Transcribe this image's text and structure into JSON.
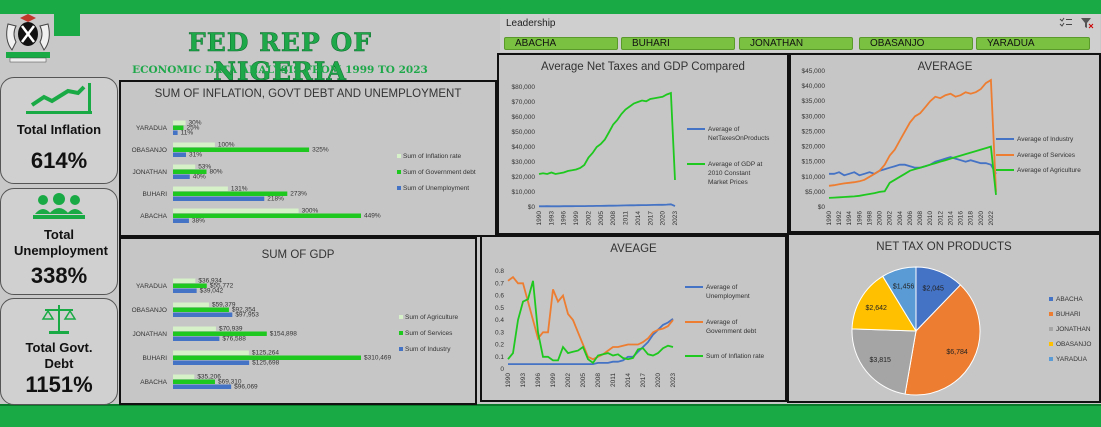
{
  "header": {
    "title": "FED REP OF NIGERIA",
    "subtitle": "ECONOMIC DATA ANALYSIS FROM 1999 TO 2023"
  },
  "kpis": [
    {
      "label": "Total Inflation",
      "value": "614%",
      "icon": "trend-up-icon"
    },
    {
      "label": "Total Unemployment",
      "value": "338%",
      "icon": "people-group-icon"
    },
    {
      "label": "Total Govt. Debt",
      "value": "1151%",
      "icon": "scales-icon"
    }
  ],
  "slicer": {
    "title": "Leadership",
    "items": [
      "ABACHA",
      "BUHARI",
      "JONATHAN",
      "OBASANJO",
      "YARADUA"
    ],
    "icons": [
      "multi-select-icon",
      "clear-filter-icon"
    ]
  },
  "colors": {
    "green": "#1aaa45",
    "light_green": "#d6f0c8",
    "bar_green": "#1ec81e",
    "blue": "#4472c4",
    "orange": "#ed7d31",
    "gray": "#a5a5a5",
    "yellow": "#ffc000",
    "light_blue": "#5b9bd5"
  },
  "chart_data": [
    {
      "id": "inflation_debt_unemp",
      "type": "bar",
      "title": "SUM OF INFLATION, GOVT DEBT AND UNEMPLOYMENT",
      "categories": [
        "YARADUA",
        "OBASANJO",
        "JONATHAN",
        "BUHARI",
        "ABACHA"
      ],
      "series": [
        {
          "name": "Sum of Inflation rate",
          "values": [
            30,
            100,
            53,
            131,
            300
          ],
          "labels": [
            "30%",
            "100%",
            "53%",
            "131%",
            "300%"
          ],
          "color": "#d6f0c8"
        },
        {
          "name": "Sum of Government debt",
          "values": [
            25,
            325,
            80,
            273,
            449
          ],
          "labels": [
            "25%",
            "325%",
            "80%",
            "273%",
            "449%"
          ],
          "color": "#1ec81e"
        },
        {
          "name": "Sum of Unemployment",
          "values": [
            11,
            31,
            40,
            218,
            38
          ],
          "labels": [
            "11%",
            "31%",
            "40%",
            "218%",
            "38%"
          ],
          "color": "#4472c4"
        }
      ]
    },
    {
      "id": "gdp_sum",
      "type": "bar",
      "title": "SUM OF GDP",
      "categories": [
        "YARADUA",
        "OBASANJO",
        "JONATHAN",
        "BUHARI",
        "ABACHA"
      ],
      "series": [
        {
          "name": "Sum of Agriculture",
          "values": [
            36934,
            59379,
            70939,
            125264,
            35206
          ],
          "labels": [
            "$36,934",
            "$59,379",
            "$70,939",
            "$125,264",
            "$35,206"
          ],
          "color": "#d6f0c8"
        },
        {
          "name": "Sum of Services",
          "values": [
            55772,
            92354,
            154898,
            310469,
            69310
          ],
          "labels": [
            "$55,772",
            "$92,354",
            "$154,898",
            "$310,469",
            "$69,310"
          ],
          "color": "#1ec81e"
        },
        {
          "name": "Sum of Industry",
          "values": [
            39042,
            97953,
            76588,
            125698,
            96069
          ],
          "labels": [
            "$39,042",
            "$97,953",
            "$76,588",
            "$125,698",
            "$96,069"
          ],
          "color": "#4472c4"
        }
      ]
    },
    {
      "id": "net_taxes_gdp",
      "type": "line",
      "title": "Average Net Taxes and GDP Compared",
      "x_ticks": [
        "1990",
        "1993",
        "1996",
        "1999",
        "2002",
        "2005",
        "2008",
        "2011",
        "2014",
        "2017",
        "2020",
        "2023"
      ],
      "x": [
        1990,
        1991,
        1992,
        1993,
        1994,
        1995,
        1996,
        1997,
        1998,
        1999,
        2000,
        2001,
        2002,
        2003,
        2004,
        2005,
        2006,
        2007,
        2008,
        2009,
        2010,
        2011,
        2012,
        2013,
        2014,
        2015,
        2016,
        2017,
        2018,
        2019,
        2020,
        2021,
        2022,
        2023
      ],
      "y_ticks": [
        "$0",
        "$10,000",
        "$20,000",
        "$30,000",
        "$40,000",
        "$50,000",
        "$60,000",
        "$70,000",
        "$80,000"
      ],
      "ylim": [
        0,
        80000
      ],
      "series": [
        {
          "name": "Average of NetTaxesOnProducts",
          "color": "#4472c4",
          "values": [
            500,
            500,
            520,
            500,
            480,
            500,
            520,
            540,
            560,
            580,
            600,
            620,
            640,
            650,
            700,
            750,
            800,
            850,
            900,
            950,
            1000,
            1050,
            1100,
            1150,
            1200,
            1250,
            1300,
            1350,
            1400,
            1450,
            1500,
            1600,
            1800,
            600
          ]
        },
        {
          "name": "Average of GDP at 2010 Constant Market Prices",
          "color": "#1ec81e",
          "values": [
            22000,
            22500,
            22000,
            23000,
            22000,
            22500,
            23000,
            24000,
            24500,
            25000,
            26000,
            28000,
            33000,
            36000,
            40000,
            42000,
            45000,
            50000,
            55000,
            58000,
            62000,
            65000,
            67000,
            69000,
            70000,
            71000,
            70500,
            72000,
            72500,
            73000,
            73500,
            75000,
            76000,
            18000
          ]
        }
      ]
    },
    {
      "id": "average_sectors",
      "type": "line",
      "title": "AVERAGE",
      "x_ticks": [
        "1990",
        "1992",
        "1994",
        "1996",
        "1998",
        "2000",
        "2002",
        "2004",
        "2006",
        "2008",
        "2010",
        "2012",
        "2014",
        "2016",
        "2018",
        "2020",
        "2022"
      ],
      "x": [
        1990,
        1991,
        1992,
        1993,
        1994,
        1995,
        1996,
        1997,
        1998,
        1999,
        2000,
        2001,
        2002,
        2003,
        2004,
        2005,
        2006,
        2007,
        2008,
        2009,
        2010,
        2011,
        2012,
        2013,
        2014,
        2015,
        2016,
        2017,
        2018,
        2019,
        2020,
        2021,
        2022,
        2023
      ],
      "y_ticks": [
        "$0",
        "$5,000",
        "$10,000",
        "$15,000",
        "$20,000",
        "$25,000",
        "$30,000",
        "$35,000",
        "$40,000",
        "$45,000"
      ],
      "ylim": [
        0,
        45000
      ],
      "series": [
        {
          "name": "Average of Industry",
          "color": "#4472c4",
          "values": [
            11000,
            11000,
            11500,
            10500,
            11000,
            11500,
            10500,
            11000,
            11500,
            11000,
            12000,
            12500,
            13000,
            13500,
            14000,
            14000,
            13500,
            13000,
            13000,
            13500,
            14000,
            15000,
            15500,
            16000,
            16500,
            16000,
            15500,
            15000,
            15500,
            15000,
            14500,
            14500,
            14000,
            11000
          ]
        },
        {
          "name": "Average of Services",
          "color": "#ed7d31",
          "values": [
            7000,
            7200,
            7500,
            7800,
            8000,
            8200,
            8500,
            9000,
            10000,
            11000,
            12000,
            14000,
            17000,
            19000,
            22000,
            25000,
            28000,
            30000,
            31000,
            33000,
            35000,
            36500,
            36000,
            37000,
            37500,
            36500,
            37000,
            38000,
            37500,
            38000,
            39000,
            41000,
            42000,
            5000
          ]
        },
        {
          "name": "Average of Agriculture",
          "color": "#1ec81e",
          "values": [
            3000,
            3100,
            3200,
            3300,
            3400,
            3500,
            3700,
            4000,
            4300,
            4600,
            5000,
            5200,
            8000,
            9000,
            10000,
            11000,
            12000,
            12500,
            13000,
            13500,
            14000,
            14500,
            15000,
            15500,
            16000,
            16500,
            17000,
            17500,
            18000,
            18500,
            19000,
            19500,
            20000,
            4000
          ]
        }
      ]
    },
    {
      "id": "average_rates",
      "type": "line",
      "title": "AVEAGE",
      "x_ticks": [
        "1990",
        "1993",
        "1996",
        "1999",
        "2002",
        "2005",
        "2008",
        "2011",
        "2014",
        "2017",
        "2020",
        "2023"
      ],
      "x": [
        1990,
        1991,
        1992,
        1993,
        1994,
        1995,
        1996,
        1997,
        1998,
        1999,
        2000,
        2001,
        2002,
        2003,
        2004,
        2005,
        2006,
        2007,
        2008,
        2009,
        2010,
        2011,
        2012,
        2013,
        2014,
        2015,
        2016,
        2017,
        2018,
        2019,
        2020,
        2021,
        2022,
        2023
      ],
      "y_ticks": [
        "0",
        "0.1",
        "0.2",
        "0.3",
        "0.4",
        "0.5",
        "0.6",
        "0.7",
        "0.8"
      ],
      "ylim": [
        0,
        0.8
      ],
      "series": [
        {
          "name": "Average of Unemployment",
          "color": "#4472c4",
          "values": [
            0.04,
            0.04,
            0.04,
            0.04,
            0.04,
            0.04,
            0.04,
            0.04,
            0.04,
            0.04,
            0.04,
            0.04,
            0.04,
            0.04,
            0.04,
            0.04,
            0.04,
            0.04,
            0.05,
            0.05,
            0.05,
            0.06,
            0.06,
            0.07,
            0.1,
            0.1,
            0.14,
            0.18,
            0.22,
            0.28,
            0.32,
            0.36,
            0.38,
            0.41
          ]
        },
        {
          "name": "Average of Government debt",
          "color": "#ed7d31",
          "values": [
            0.72,
            0.75,
            0.7,
            0.7,
            0.55,
            0.4,
            0.25,
            0.3,
            0.3,
            0.65,
            0.55,
            0.6,
            0.45,
            0.4,
            0.3,
            0.2,
            0.1,
            0.08,
            0.1,
            0.12,
            0.15,
            0.18,
            0.18,
            0.19,
            0.2,
            0.2,
            0.2,
            0.22,
            0.25,
            0.3,
            0.32,
            0.33,
            0.35,
            0.4
          ]
        },
        {
          "name": "Sum of Inflation rate",
          "color": "#1ec81e",
          "values": [
            0.08,
            0.13,
            0.4,
            0.55,
            0.57,
            0.72,
            0.3,
            0.1,
            0.1,
            0.07,
            0.07,
            0.18,
            0.13,
            0.14,
            0.15,
            0.18,
            0.08,
            0.05,
            0.11,
            0.12,
            0.13,
            0.11,
            0.12,
            0.09,
            0.08,
            0.09,
            0.16,
            0.17,
            0.12,
            0.11,
            0.13,
            0.17,
            0.19,
            0.18
          ]
        }
      ]
    },
    {
      "id": "net_tax_products",
      "type": "pie",
      "title": "NET TAX ON PRODUCTS",
      "slices": [
        {
          "name": "ABACHA",
          "value": 2045,
          "label": "$2,045",
          "color": "#4472c4"
        },
        {
          "name": "BUHARI",
          "value": 6784,
          "label": "$6,784",
          "color": "#ed7d31"
        },
        {
          "name": "JONATHAN",
          "value": 3815,
          "label": "$3,815",
          "color": "#a5a5a5"
        },
        {
          "name": "OBASANJO",
          "value": 2642,
          "label": "$2,642",
          "color": "#ffc000"
        },
        {
          "name": "YARADUA",
          "value": 1456,
          "label": "$1,456",
          "color": "#5b9bd5"
        }
      ]
    }
  ]
}
